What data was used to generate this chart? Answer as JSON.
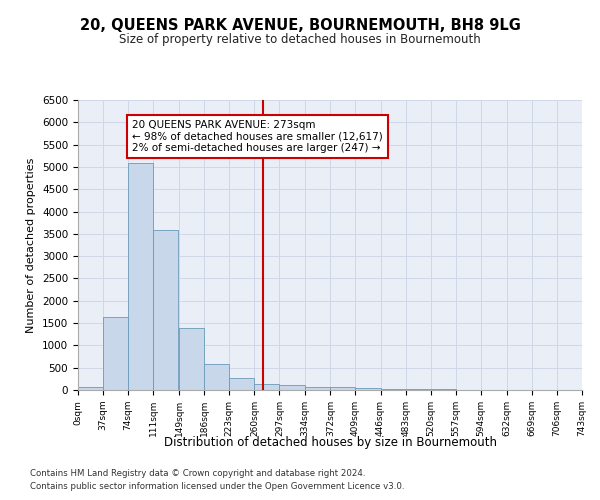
{
  "title": "20, QUEENS PARK AVENUE, BOURNEMOUTH, BH8 9LG",
  "subtitle": "Size of property relative to detached houses in Bournemouth",
  "xlabel": "Distribution of detached houses by size in Bournemouth",
  "ylabel": "Number of detached properties",
  "bar_color": "#c8d8ea",
  "bar_edge_color": "#6a9ab8",
  "bin_width": 37,
  "bin_starts": [
    0,
    37,
    74,
    111,
    149,
    186,
    223,
    260,
    297,
    334,
    372,
    409,
    446,
    483,
    520,
    557,
    594,
    632,
    669,
    706
  ],
  "bar_heights": [
    75,
    1630,
    5080,
    3580,
    1400,
    590,
    280,
    130,
    110,
    75,
    60,
    40,
    30,
    20,
    15,
    10,
    8,
    5,
    5,
    0
  ],
  "bin_labels": [
    "0sqm",
    "37sqm",
    "74sqm",
    "111sqm",
    "149sqm",
    "186sqm",
    "223sqm",
    "260sqm",
    "297sqm",
    "334sqm",
    "372sqm",
    "409sqm",
    "446sqm",
    "483sqm",
    "520sqm",
    "557sqm",
    "594sqm",
    "632sqm",
    "669sqm",
    "706sqm",
    "743sqm"
  ],
  "property_size": 273,
  "vline_color": "#cc0000",
  "annotation_text": "20 QUEENS PARK AVENUE: 273sqm\n← 98% of detached houses are smaller (12,617)\n2% of semi-detached houses are larger (247) →",
  "annotation_box_color": "#ffffff",
  "annotation_box_edge": "#cc0000",
  "ylim": [
    0,
    6500
  ],
  "grid_color": "#d0d8e8",
  "background_color": "#eaeff7",
  "footer_line1": "Contains HM Land Registry data © Crown copyright and database right 2024.",
  "footer_line2": "Contains public sector information licensed under the Open Government Licence v3.0."
}
